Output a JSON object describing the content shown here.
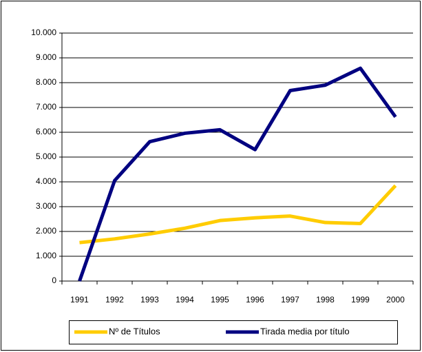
{
  "chart_data": {
    "type": "line",
    "categories": [
      "1991",
      "1992",
      "1993",
      "1994",
      "1995",
      "1996",
      "1997",
      "1998",
      "1999",
      "2000"
    ],
    "series": [
      {
        "name": "Nº de Títulos",
        "color": "#ffcc00",
        "values": [
          1550,
          1700,
          1900,
          2130,
          2440,
          2550,
          2620,
          2360,
          2320,
          3850
        ]
      },
      {
        "name": "Tirada media por título",
        "color": "#000080",
        "values": [
          0,
          4050,
          5620,
          5960,
          6100,
          5300,
          7680,
          7900,
          8580,
          6620
        ]
      }
    ],
    "ylim": [
      0,
      10000
    ],
    "yticks": [
      0,
      {
        "value": 1000,
        "label": "1.000"
      },
      {
        "value": 2000,
        "label": "2.000"
      },
      {
        "value": 3000,
        "label": "3.000"
      },
      {
        "value": 4000,
        "label": "4.000"
      },
      {
        "value": 5000,
        "label": "5.000"
      },
      {
        "value": 6000,
        "label": "6.000"
      },
      {
        "value": 7000,
        "label": "7.000"
      },
      {
        "value": 8000,
        "label": "8.000"
      },
      {
        "value": 9000,
        "label": "9.000"
      },
      {
        "value": 10000,
        "label": "10.000"
      }
    ],
    "grid": true,
    "legend": "bottom"
  }
}
